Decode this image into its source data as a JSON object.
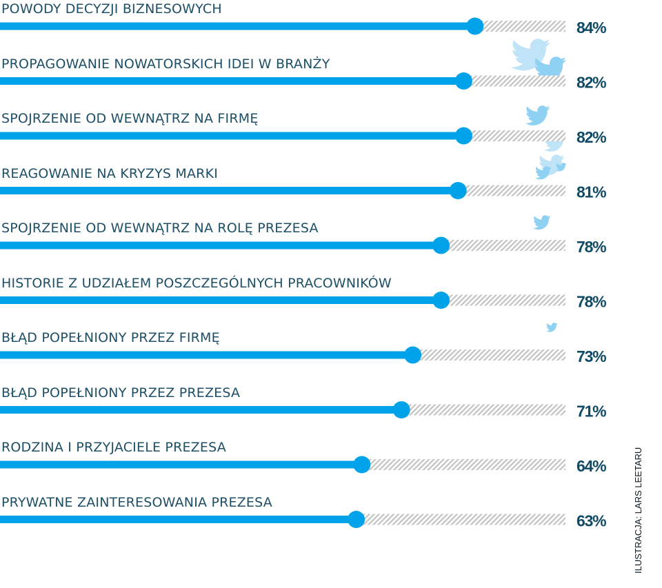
{
  "colors": {
    "bar": "#00a3ea",
    "remainder": "#c2c2c2",
    "label_text": "#1d4f66",
    "percent_text": "#0f4a66",
    "bird_light": "#bfe3f7",
    "bird_mid": "#8fd1f2"
  },
  "decorations": [
    "twitter-bird-icon"
  ],
  "credit": "ILUSTRACJA: LARS LEETARU",
  "chart_data": {
    "type": "bar",
    "orientation": "horizontal",
    "unit": "%",
    "xlim": [
      0,
      100
    ],
    "grid": false,
    "legend": "none",
    "categories": [
      "POWODY DECYZJI BIZNESOWYCH",
      "PROPAGOWANIE NOWATORSKICH IDEI W BRANŻY",
      "SPOJRZENIE OD WEWNĄTRZ NA FIRMĘ",
      "REAGOWANIE NA KRYZYS MARKI",
      "SPOJRZENIE OD WEWNĄTRZ NA ROLĘ PREZESA",
      "HISTORIE Z UDZIAŁEM POSZCZEGÓLNYCH PRACOWNIKÓW",
      "BŁĄD POPEŁNIONY PRZEZ FIRMĘ",
      "BŁĄD POPEŁNIONY PRZEZ PREZESA",
      "RODZINA I PRZYJACIELE PREZESA",
      "PRYWATNE ZAINTERESOWANIA PREZESA"
    ],
    "values": [
      84,
      82,
      82,
      81,
      78,
      78,
      73,
      71,
      64,
      63
    ],
    "value_labels": [
      "84%",
      "82%",
      "82%",
      "81%",
      "78%",
      "78%",
      "73%",
      "71%",
      "64%",
      "63%"
    ]
  }
}
